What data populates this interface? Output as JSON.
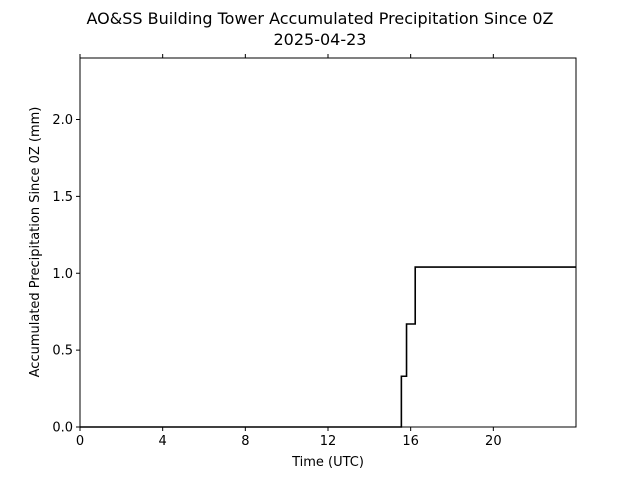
{
  "chart_data": {
    "type": "line",
    "title": "AO&SS Building Tower Accumulated Precipitation Since 0Z",
    "subtitle": "2025-04-23",
    "xlabel": "Time (UTC)",
    "ylabel": "Accumulated Precipitation Since 0Z (mm)",
    "xlim": [
      0,
      24
    ],
    "ylim": [
      0,
      2.4
    ],
    "x_ticks": [
      0,
      4,
      8,
      12,
      16,
      20
    ],
    "x_tick_labels": [
      "0",
      "4",
      "8",
      "12",
      "16",
      "20"
    ],
    "y_ticks": [
      0,
      0.5,
      1.0,
      1.5,
      2.0
    ],
    "y_tick_labels": [
      "0.0",
      "0.5",
      "1.0",
      "1.5",
      "2.0"
    ],
    "grid": false,
    "series": [
      {
        "color": "#000000",
        "step": true,
        "x": [
          0,
          15.55,
          15.55,
          15.8,
          15.8,
          16.22,
          16.22,
          24
        ],
        "y": [
          0,
          0,
          0.33,
          0.33,
          0.67,
          0.67,
          1.04,
          1.04
        ]
      }
    ]
  }
}
